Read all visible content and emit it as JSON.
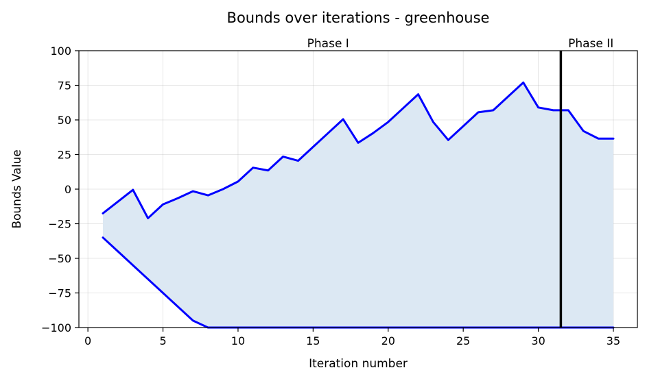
{
  "chart_data": {
    "type": "line",
    "title": "Bounds over iterations - greenhouse",
    "xlabel": "Iteration number",
    "ylabel": "Bounds Value",
    "xlim": [
      -0.6,
      36.6
    ],
    "ylim": [
      -100,
      100
    ],
    "xticks": [
      0,
      5,
      10,
      15,
      20,
      25,
      30,
      35
    ],
    "yticks": [
      -100,
      -75,
      -50,
      -25,
      0,
      25,
      50,
      75,
      100
    ],
    "ytick_labels": [
      "−100",
      "−75",
      "−50",
      "−25",
      "0",
      "25",
      "50",
      "75",
      "100"
    ],
    "grid": true,
    "fill_between_series": true,
    "colors": {
      "line": "#0000ff",
      "fill": "#dce8f3",
      "phase_line": "#000000"
    },
    "series": [
      {
        "x": [
          1,
          2,
          3,
          4,
          5,
          6,
          7,
          8,
          9,
          10,
          11,
          12,
          13,
          14,
          15,
          16,
          17,
          18,
          19,
          20,
          21,
          22,
          23,
          24,
          25,
          26,
          27,
          28,
          29,
          30,
          31,
          32,
          33,
          34,
          35
        ],
        "values": [
          -17.5,
          -9,
          -0.5,
          -21,
          -11,
          -6.5,
          -1.5,
          -4.5,
          0,
          5.5,
          15.5,
          13.5,
          23.5,
          20.5,
          30.5,
          40.5,
          50.5,
          33.5,
          40.5,
          48.5,
          58.5,
          68.5,
          48.5,
          35.5,
          45.5,
          55.5,
          57,
          67,
          77,
          59,
          57,
          57,
          42,
          36.5,
          36.5
        ]
      },
      {
        "x": [
          1,
          2,
          3,
          4,
          5,
          6,
          7,
          8,
          9,
          10,
          11,
          12,
          13,
          14,
          15,
          16,
          17,
          18,
          19,
          20,
          21,
          22,
          23,
          24,
          25,
          26,
          27,
          28,
          29,
          30,
          31,
          32,
          33,
          34,
          35
        ],
        "values": [
          -35,
          -45,
          -55,
          -65,
          -75,
          -85,
          -95,
          -100,
          -100,
          -100,
          -100,
          -100,
          -100,
          -100,
          -100,
          -100,
          -100,
          -100,
          -100,
          -100,
          -100,
          -100,
          -100,
          -100,
          -100,
          -100,
          -100,
          -100,
          -100,
          -100,
          -100,
          -100,
          -100,
          -100,
          -100
        ]
      }
    ],
    "phase_boundary_x": 31.5,
    "annotations": [
      {
        "text": "Phase I",
        "x": 16
      },
      {
        "text": "Phase II",
        "x": 33.5
      }
    ]
  }
}
